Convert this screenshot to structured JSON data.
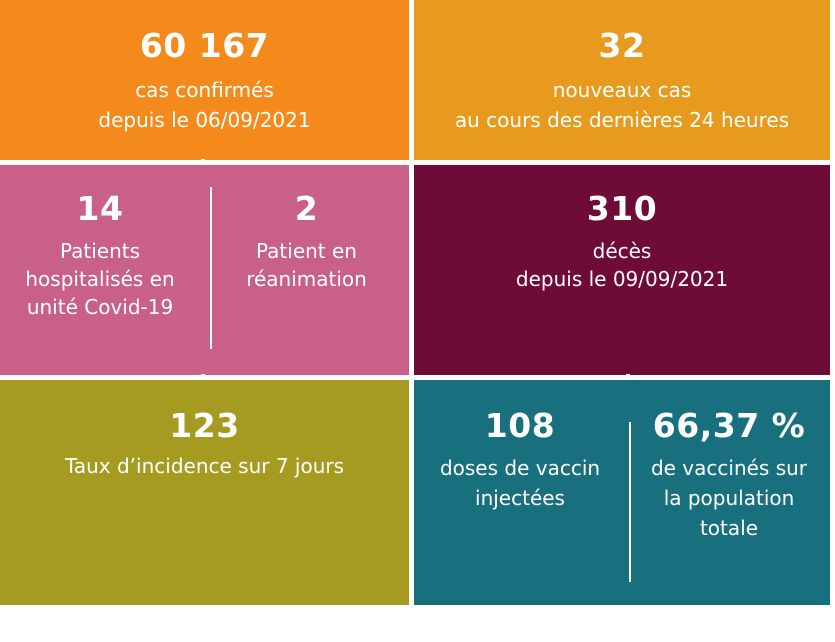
{
  "colors": {
    "orange": "#f48a1c",
    "amber": "#e79a1e",
    "pink": "#c9608a",
    "maroon": "#6e0b36",
    "olive": "#a59b20",
    "teal": "#18707e",
    "text": "#ffffff"
  },
  "tiles": {
    "confirmed": {
      "number": "60 167",
      "line1": "cas confirmés",
      "line2": "depuis le 06/09/2021"
    },
    "new_cases": {
      "number": "32",
      "line1": "nouveaux cas",
      "line2": "au cours des dernières 24 heures"
    },
    "hospitalized": {
      "number": "14",
      "line1": "Patients",
      "line2": "hospitalisés en",
      "line3": "unité Covid-19"
    },
    "icu": {
      "number": "2",
      "line1": "Patient en",
      "line2": "réanimation"
    },
    "deaths": {
      "number": "310",
      "line1": "décès",
      "line2": "depuis le 09/09/2021"
    },
    "incidence": {
      "number": "123",
      "line1": "Taux d’incidence sur 7 jours"
    },
    "doses": {
      "number": "108",
      "line1": "doses de vaccin",
      "line2": "injectées"
    },
    "vaccinated": {
      "number": "66,37 %",
      "line1": "de vaccinés sur",
      "line2": "la population",
      "line3": "totale"
    }
  }
}
